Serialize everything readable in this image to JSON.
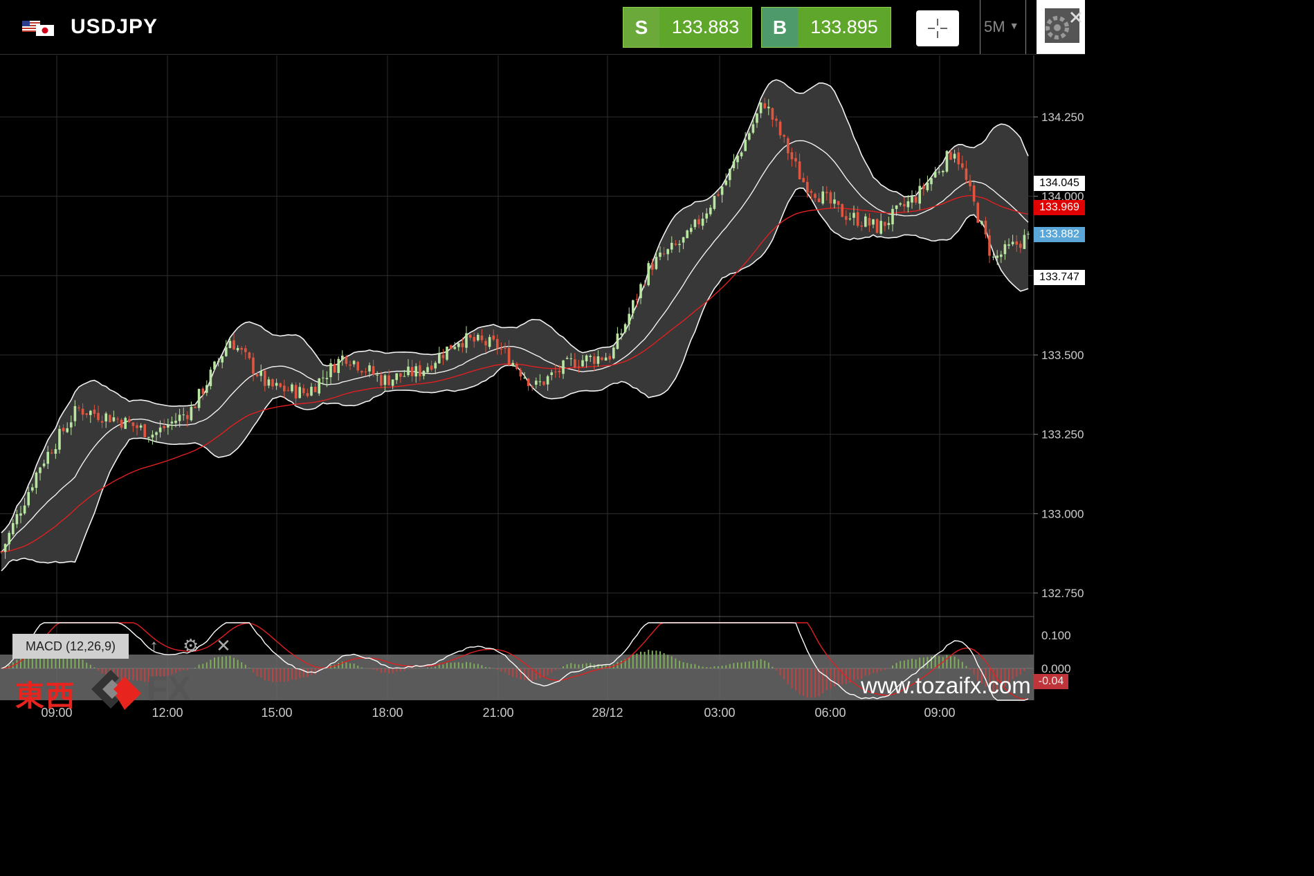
{
  "header": {
    "symbol": "USDJPY",
    "sell_side": "S",
    "sell_price": "133.883",
    "buy_side": "B",
    "buy_price": "133.895",
    "timeframe": "5M",
    "icons": [
      "us-flag-icon",
      "jp-flag-icon",
      "crosshair-icon",
      "dropdown-arrow-icon",
      "gear-icon"
    ]
  },
  "chart": {
    "price_axis": [
      "134.250",
      "134.000",
      "133.750",
      "133.500",
      "133.250",
      "133.000",
      "132.750"
    ],
    "time_axis": [
      "09:00",
      "12:00",
      "15:00",
      "18:00",
      "21:00",
      "28/12",
      "03:00",
      "06:00",
      "09:00"
    ],
    "tags": {
      "bb_upper": "134.045",
      "ma": "133.969",
      "last": "133.882",
      "bb_lower": "133.747"
    },
    "colors": {
      "up_candle": "#b8e6a0",
      "down_candle": "#e0553f",
      "band_fill": "#383838",
      "band_line": "#ffffff",
      "ma_line": "#e02020"
    }
  },
  "chart_data": {
    "type": "candlestick",
    "symbol": "USDJPY",
    "interval": "5M",
    "ylim": [
      132.7,
      134.45
    ],
    "indicators": [
      "Bollinger Bands",
      "Moving Average"
    ],
    "close_path": [
      {
        "t": "08:00",
        "close": 132.88
      },
      {
        "t": "09:00",
        "close": 133.15
      },
      {
        "t": "10:00",
        "close": 133.33
      },
      {
        "t": "11:00",
        "close": 133.3
      },
      {
        "t": "12:00",
        "close": 133.25
      },
      {
        "t": "13:00",
        "close": 133.33
      },
      {
        "t": "14:00",
        "close": 133.55
      },
      {
        "t": "15:00",
        "close": 133.4
      },
      {
        "t": "16:00",
        "close": 133.38
      },
      {
        "t": "17:00",
        "close": 133.5
      },
      {
        "t": "18:00",
        "close": 133.42
      },
      {
        "t": "19:00",
        "close": 133.45
      },
      {
        "t": "20:00",
        "close": 133.55
      },
      {
        "t": "21:00",
        "close": 133.53
      },
      {
        "t": "22:00",
        "close": 133.4
      },
      {
        "t": "23:00",
        "close": 133.48
      },
      {
        "t": "28/12 00:00",
        "close": 133.5
      },
      {
        "t": "01:00",
        "close": 133.78
      },
      {
        "t": "02:00",
        "close": 133.87
      },
      {
        "t": "03:00",
        "close": 134.05
      },
      {
        "t": "04:00",
        "close": 134.3
      },
      {
        "t": "05:00",
        "close": 134.05
      },
      {
        "t": "06:00",
        "close": 133.95
      },
      {
        "t": "07:00",
        "close": 133.9
      },
      {
        "t": "08:00",
        "close": 134.0
      },
      {
        "t": "09:00",
        "close": 134.15
      },
      {
        "t": "10:00",
        "close": 133.8
      },
      {
        "t": "10:50",
        "close": 133.88
      }
    ],
    "bollinger_last": {
      "upper": 134.045,
      "lower": 133.747
    },
    "ma_last": 133.969,
    "last_price": 133.882,
    "macd": {
      "label": "MACD (12,26,9)",
      "axis": [
        "0.100",
        "0.000"
      ],
      "last_value_label": "-0.04"
    }
  },
  "branding": {
    "logo_text_jp": "東西",
    "logo_text_fx": "FX",
    "watermark": "www.tozaifx.com"
  }
}
